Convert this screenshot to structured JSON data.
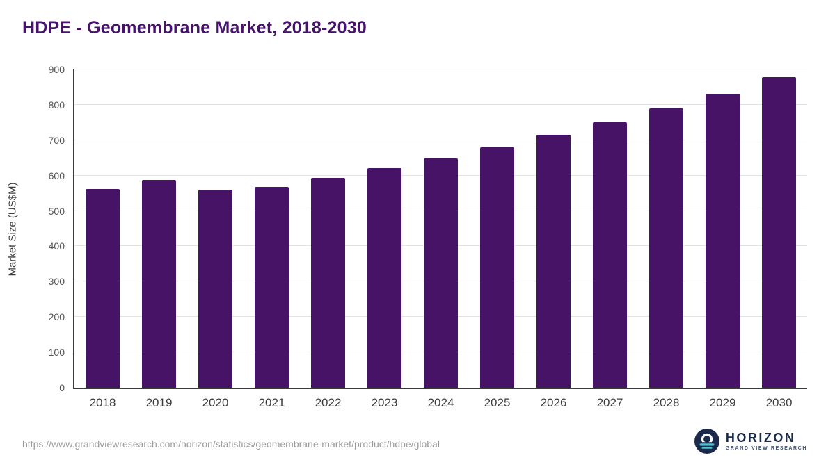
{
  "title": "HDPE - Geomembrane Market, 2018-2030",
  "chart_data": {
    "type": "bar",
    "title": "HDPE - Geomembrane Market, 2018-2030",
    "categories": [
      "2018",
      "2019",
      "2020",
      "2021",
      "2022",
      "2023",
      "2024",
      "2025",
      "2026",
      "2027",
      "2028",
      "2029",
      "2030"
    ],
    "values": [
      562,
      587,
      560,
      568,
      593,
      621,
      648,
      679,
      715,
      750,
      790,
      832,
      878
    ],
    "xlabel": "",
    "ylabel": "Market Size (US$M)",
    "ylim": [
      0,
      900
    ],
    "ytick_step": 100,
    "grid": true,
    "legend": "none",
    "bar_color": "#461367"
  },
  "footer": {
    "source_url": "https://www.grandviewresearch.com/horizon/statistics/geomembrane-market/product/hdpe/global",
    "logo_title": "HORIZON",
    "logo_subtitle": "GRAND VIEW RESEARCH"
  },
  "colors": {
    "bar": "#461367",
    "title_text": "#451369",
    "axis": "#3a3a3a",
    "gridline": "#e3e3e3",
    "tick_text": "#555555",
    "source_text": "#9b9b9b",
    "logo_navy": "#1b2a4a",
    "logo_teal": "#4cc2d0"
  }
}
